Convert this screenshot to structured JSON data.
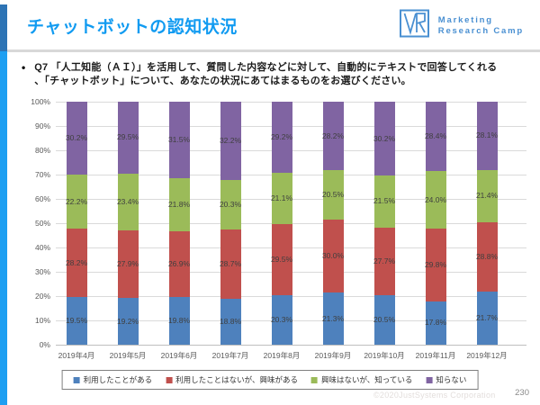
{
  "header": {
    "title": "チャットボットの認知状況",
    "logo": {
      "line1": "Marketing",
      "line2": "Research Camp"
    }
  },
  "question": {
    "bullet": "•",
    "lines": [
      "Q7 「人工知能（ＡＩ）」を活用して、質問した内容などに対して、自動的にテキストで回答してくれる",
      "、「チャットボット」について、あなたの状況にあてはまるものをお選びください。"
    ]
  },
  "chart_data": {
    "type": "bar",
    "stacked": true,
    "categories": [
      "2019年4月",
      "2019年5月",
      "2019年6月",
      "2019年7月",
      "2019年8月",
      "2019年9月",
      "2019年10月",
      "2019年11月",
      "2019年12月"
    ],
    "series": [
      {
        "name": "利用したことがある",
        "color": "#4E81BD",
        "values": [
          19.5,
          19.2,
          19.8,
          18.8,
          20.3,
          21.3,
          20.5,
          17.8,
          21.7
        ]
      },
      {
        "name": "利用したことはないが、興味がある",
        "color": "#C0504D",
        "values": [
          28.2,
          27.9,
          26.9,
          28.7,
          29.5,
          30.0,
          27.7,
          29.8,
          28.8
        ]
      },
      {
        "name": "興味はないが、知っている",
        "color": "#9BBB59",
        "values": [
          22.2,
          23.4,
          21.8,
          20.3,
          21.1,
          20.5,
          21.5,
          24.0,
          21.4
        ]
      },
      {
        "name": "知らない",
        "color": "#8064A2",
        "values": [
          30.2,
          29.5,
          31.5,
          32.2,
          29.2,
          28.2,
          30.2,
          28.4,
          28.1
        ]
      }
    ],
    "y_ticks": [
      "0%",
      "10%",
      "20%",
      "30%",
      "40%",
      "50%",
      "60%",
      "70%",
      "80%",
      "90%",
      "100%"
    ],
    "ylim": [
      0,
      100
    ],
    "grid": true,
    "legend_position": "bottom",
    "data_labels": true
  },
  "footer": {
    "copyright": "©2020JustSystems Corporation",
    "page_number": "230"
  },
  "colors": {
    "title_blue": "#119BF1",
    "accent_top": "#2D74B5",
    "accent_bottom": "#1E9FF2",
    "logo_blue": "#4A90D2",
    "gridline": "#DADADA",
    "axis_text": "#595959",
    "data_label": "#3F3F3F"
  }
}
